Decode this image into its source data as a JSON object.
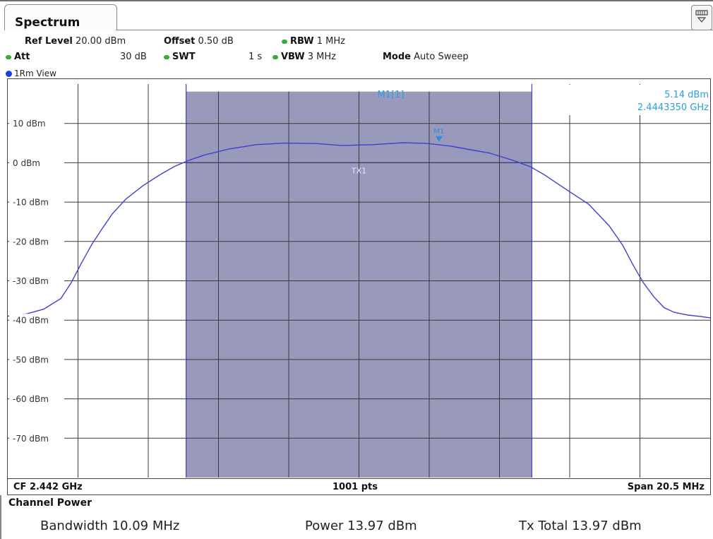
{
  "window": {
    "tab_label": "Spectrum"
  },
  "settings": {
    "ref_level_label": "Ref Level",
    "ref_level_value": "20.00 dBm",
    "offset_label": "Offset",
    "offset_value": "0.50 dB",
    "rbw_label": "RBW",
    "rbw_value": "1 MHz",
    "att_label": "Att",
    "att_value": "30 dB",
    "swt_label": "SWT",
    "swt_value": "1 s",
    "vbw_label": "VBW",
    "vbw_value": "3 MHz",
    "mode_label": "Mode",
    "mode_value": "Auto Sweep"
  },
  "view_label": "1Rm View",
  "marker": {
    "header": "M1[1]",
    "level": "5.14 dBm",
    "frequency": "2.4443350 GHz",
    "trace_label": "M1"
  },
  "channel_label": "TX1",
  "footer": {
    "cf": "CF 2.442 GHz",
    "points": "1001 pts",
    "span": "Span 20.5 MHz"
  },
  "channel_power": {
    "title": "Channel Power",
    "bandwidth_label": "Bandwidth",
    "bandwidth_value": "10.09 MHz",
    "power_label": "Power",
    "power_value": "13.97 dBm",
    "tx_total_label": "Tx Total",
    "tx_total_value": "13.97 dBm"
  },
  "colors": {
    "trace": "#3f3fd6",
    "channel_fill": "#9999bb",
    "marker": "#2c8ce0",
    "readout": "#2aa0d8",
    "grid": "#3a3a3a"
  },
  "chart_data": {
    "type": "line",
    "x_unit": "GHz",
    "xlim": [
      2.43175,
      2.45225
    ],
    "ylim": [
      -80,
      20
    ],
    "y_ticks": [
      10,
      0,
      -10,
      -20,
      -30,
      -40,
      -50,
      -60,
      -70
    ],
    "y_tick_labels": [
      "10 dBm",
      "0 dBm",
      "-10 dBm",
      "-20 dBm",
      "-30 dBm",
      "-40 dBm",
      "-50 dBm",
      "-60 dBm",
      "-70 dBm"
    ],
    "grid": true,
    "channel_band": {
      "x_start": 2.436955,
      "x_end": 2.447045,
      "level_dbm": 0
    },
    "marker_point": {
      "x": 2.444335,
      "y": 5.14
    },
    "series": [
      {
        "values_x": [
          2.43175,
          2.4323,
          2.4328,
          2.4333,
          2.4336,
          2.4339,
          2.4342,
          2.4345,
          2.4348,
          2.4352,
          2.4357,
          2.4362,
          2.4366,
          2.437,
          2.4375,
          2.4382,
          2.439,
          2.4398,
          2.4407,
          2.4415,
          2.4424,
          2.4433,
          2.444,
          2.4447,
          2.4452,
          2.4458,
          2.4465,
          2.447,
          2.4474,
          2.448,
          2.4487,
          2.4493,
          2.4497,
          2.45,
          2.4503,
          2.4506,
          2.4509,
          2.4512,
          2.4516,
          2.452,
          2.45225
        ],
        "values_y": [
          -39,
          -38.4,
          -37.2,
          -34.5,
          -30.5,
          -25.5,
          -20.8,
          -16.8,
          -13,
          -9.2,
          -5.8,
          -3,
          -1,
          0.5,
          2,
          3.5,
          4.6,
          5,
          4.9,
          4.4,
          4.6,
          5.1,
          4.9,
          4.2,
          3.4,
          2.5,
          0.6,
          -1,
          -3,
          -6.5,
          -10.5,
          -16,
          -21,
          -26,
          -30.5,
          -34,
          -36.8,
          -38,
          -38.7,
          -39.1,
          -39.4
        ]
      }
    ]
  }
}
